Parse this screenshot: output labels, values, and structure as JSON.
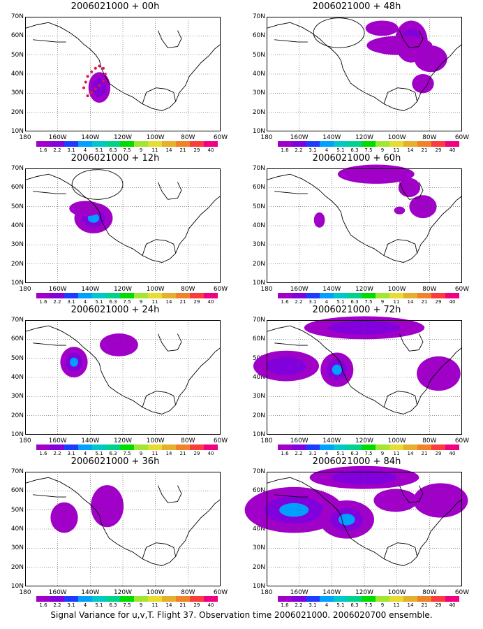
{
  "panels": [
    {
      "title": "2006021000 + 00h",
      "blobs": [
        {
          "cx": 38,
          "cy": 33,
          "rx": 4,
          "ry": 8,
          "level": 2
        }
      ],
      "dots": true,
      "ellipse": false
    },
    {
      "title": "2006021000 + 48h",
      "blobs": [
        {
          "cx": 74,
          "cy": 57,
          "rx": 6,
          "ry": 11,
          "level": 2
        },
        {
          "cx": 68,
          "cy": 55,
          "rx": 12,
          "ry": 5,
          "level": 1
        },
        {
          "cx": 59,
          "cy": 64,
          "rx": 6,
          "ry": 4,
          "level": 1
        },
        {
          "cx": 84,
          "cy": 48,
          "rx": 6,
          "ry": 7,
          "level": 1
        },
        {
          "cx": 80,
          "cy": 35,
          "rx": 4,
          "ry": 5,
          "level": 1
        }
      ],
      "dots": false,
      "ellipse": true
    },
    {
      "title": "2006021000 + 12h",
      "blobs": [
        {
          "cx": 35,
          "cy": 44,
          "rx": 7,
          "ry": 8,
          "level": 3
        },
        {
          "cx": 31,
          "cy": 49,
          "rx": 6,
          "ry": 4,
          "level": 1
        }
      ],
      "dots": false,
      "ellipse": true
    },
    {
      "title": "2006021000 + 60h",
      "blobs": [
        {
          "cx": 56,
          "cy": 67,
          "rx": 14,
          "ry": 5,
          "level": 1
        },
        {
          "cx": 73,
          "cy": 60,
          "rx": 4,
          "ry": 5,
          "level": 1
        },
        {
          "cx": 80,
          "cy": 50,
          "rx": 5,
          "ry": 6,
          "level": 1
        },
        {
          "cx": 27,
          "cy": 43,
          "rx": 2,
          "ry": 4,
          "level": 1
        },
        {
          "cx": 68,
          "cy": 48,
          "rx": 2,
          "ry": 2,
          "level": 1
        }
      ],
      "dots": false,
      "ellipse": false
    },
    {
      "title": "2006021000 + 24h",
      "blobs": [
        {
          "cx": 25,
          "cy": 48,
          "rx": 5,
          "ry": 8,
          "level": 3
        },
        {
          "cx": 48,
          "cy": 57,
          "rx": 7,
          "ry": 6,
          "level": 1
        }
      ],
      "dots": false,
      "ellipse": false
    },
    {
      "title": "2006021000 + 72h",
      "blobs": [
        {
          "cx": 50,
          "cy": 66,
          "rx": 22,
          "ry": 6,
          "level": 2
        },
        {
          "cx": 10,
          "cy": 46,
          "rx": 12,
          "ry": 8,
          "level": 2
        },
        {
          "cx": 36,
          "cy": 44,
          "rx": 6,
          "ry": 9,
          "level": 3
        },
        {
          "cx": 88,
          "cy": 42,
          "rx": 8,
          "ry": 9,
          "level": 1
        }
      ],
      "dots": false,
      "ellipse": false
    },
    {
      "title": "2006021000 + 36h",
      "blobs": [
        {
          "cx": 20,
          "cy": 46,
          "rx": 5,
          "ry": 8,
          "level": 1
        },
        {
          "cx": 42,
          "cy": 52,
          "rx": 6,
          "ry": 11,
          "level": 1
        }
      ],
      "dots": false,
      "ellipse": false
    },
    {
      "title": "2006021000 + 84h",
      "blobs": [
        {
          "cx": 50,
          "cy": 67,
          "rx": 20,
          "ry": 6,
          "level": 2
        },
        {
          "cx": 14,
          "cy": 50,
          "rx": 18,
          "ry": 12,
          "level": 3
        },
        {
          "cx": 41,
          "cy": 45,
          "rx": 10,
          "ry": 10,
          "level": 3
        },
        {
          "cx": 89,
          "cy": 55,
          "rx": 10,
          "ry": 9,
          "level": 1
        },
        {
          "cx": 66,
          "cy": 55,
          "rx": 8,
          "ry": 6,
          "level": 1
        }
      ],
      "dots": false,
      "ellipse": false
    }
  ],
  "y_labels": [
    "70N",
    "60N",
    "50N",
    "40N",
    "30N",
    "20N",
    "10N"
  ],
  "x_labels": [
    "180",
    "160W",
    "140W",
    "120W",
    "100W",
    "80W",
    "60W"
  ],
  "colorbar": {
    "labels": [
      "1.6",
      "2.2",
      "3.1",
      "4",
      "5.1",
      "6.3",
      "7.5",
      "9",
      "11",
      "14",
      "21",
      "29",
      "40"
    ],
    "colors": [
      "#a000c8",
      "#8200dc",
      "#1e3cff",
      "#00a0ff",
      "#00c8c8",
      "#00d28c",
      "#00dc00",
      "#a0e632",
      "#e6dc32",
      "#e6af2d",
      "#f08228",
      "#fa3c3c",
      "#f00082"
    ]
  },
  "footer": "Signal Variance for u,v,T. Flight 37. Observation time 2006021000. 2006020700 ensemble."
}
